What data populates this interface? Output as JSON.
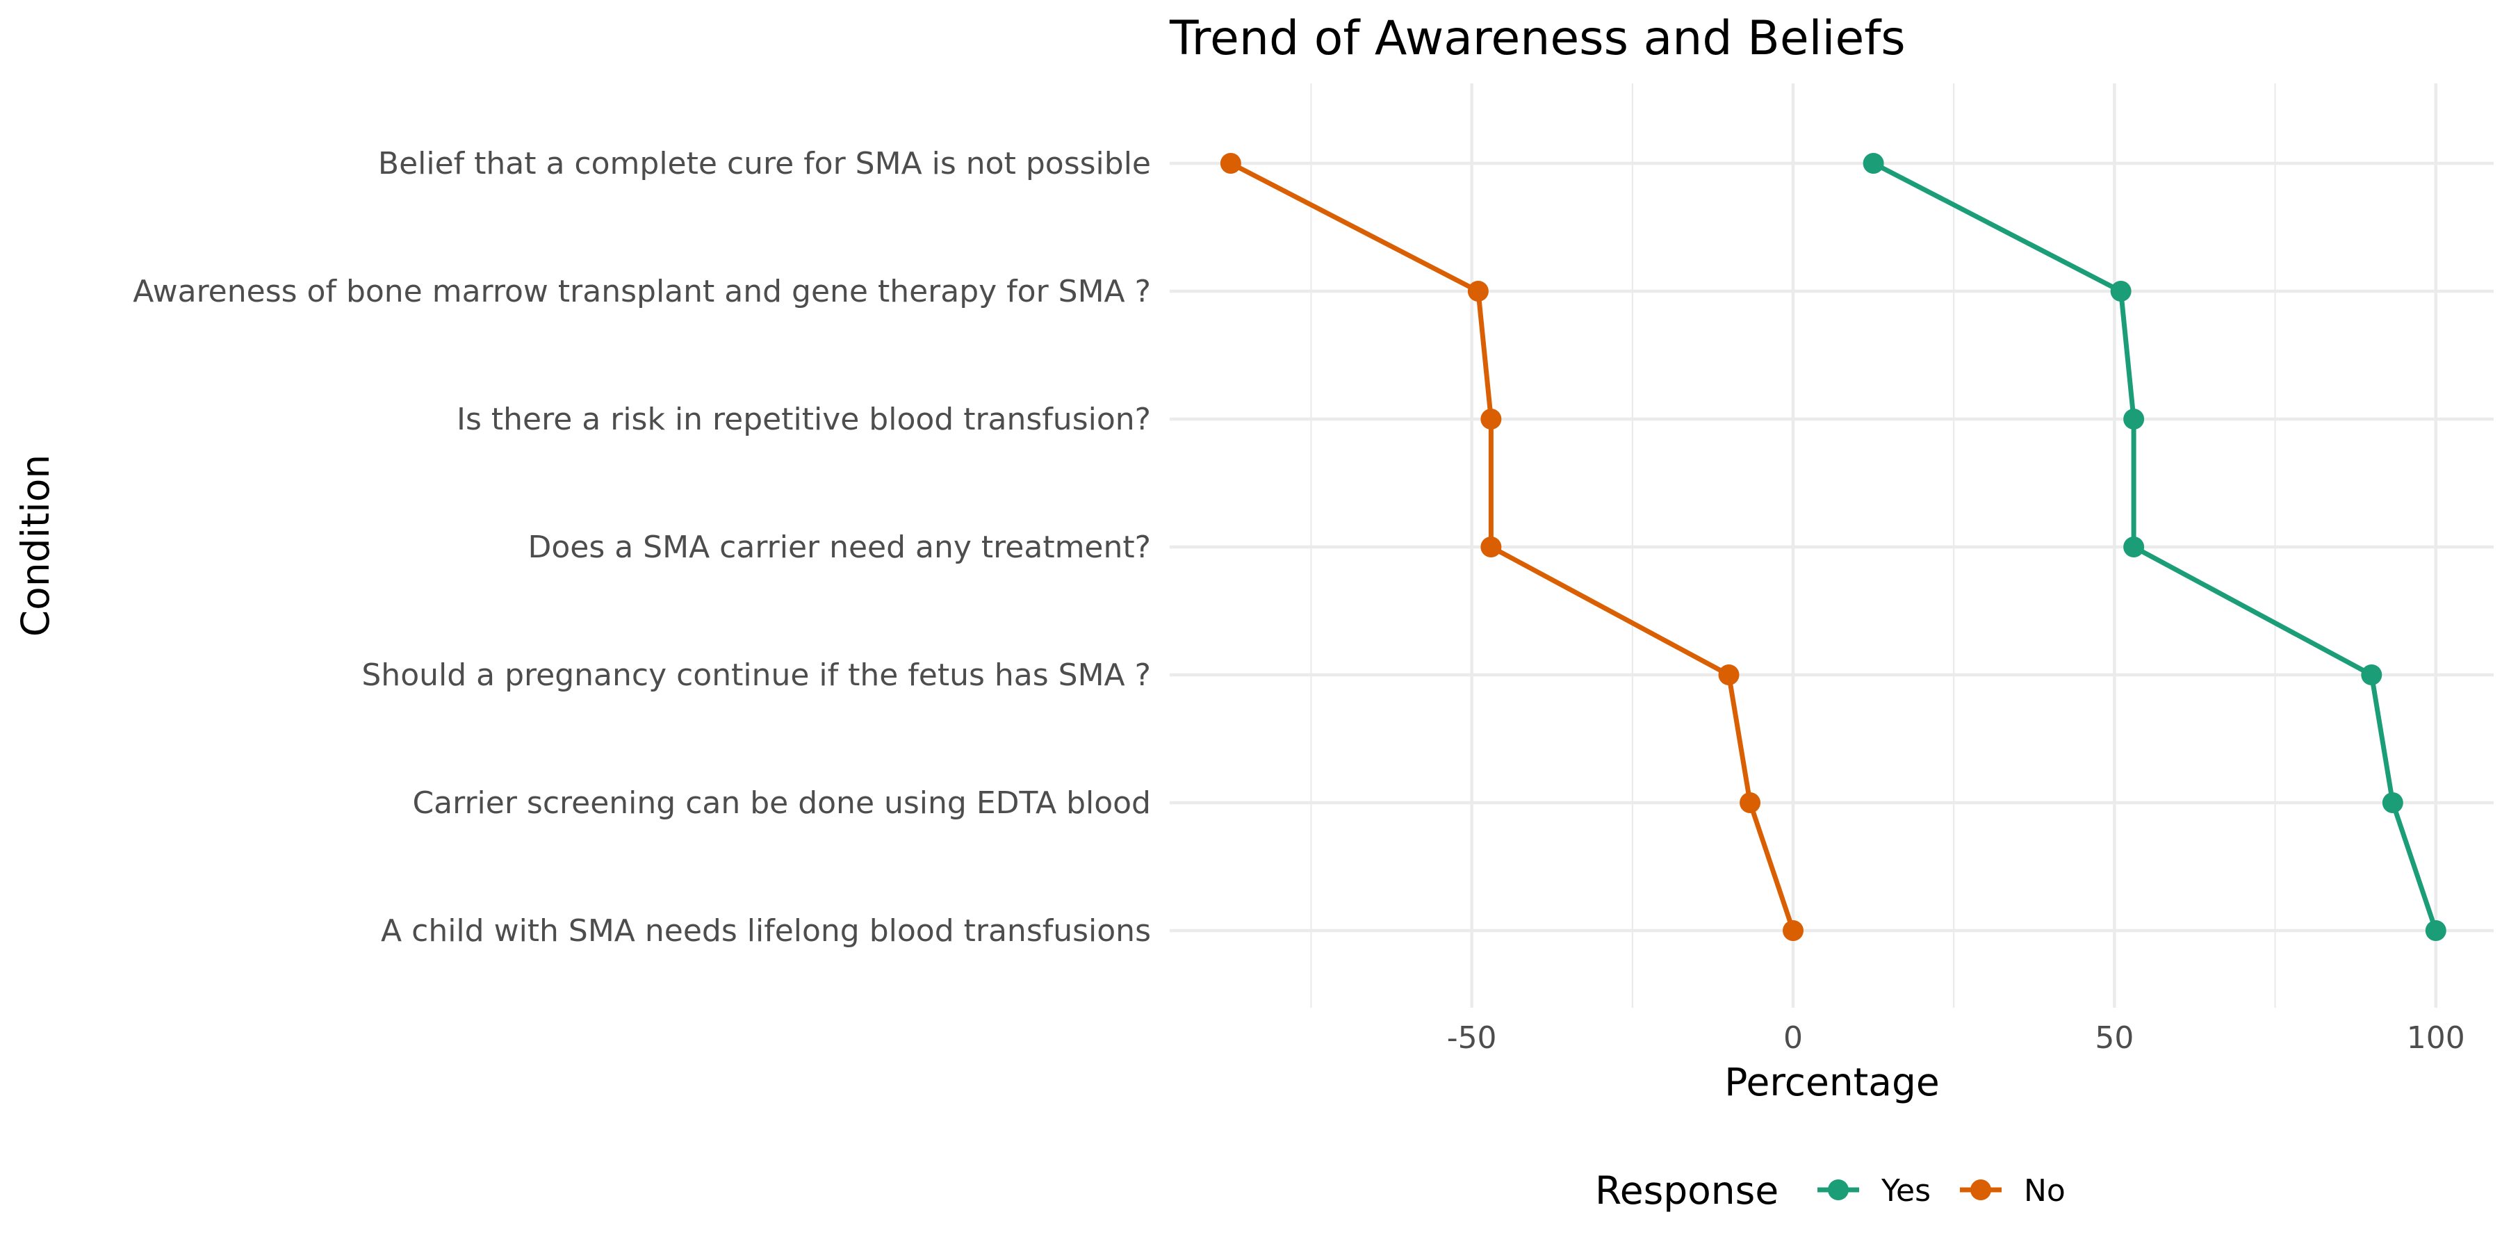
{
  "chart_data": {
    "type": "line",
    "title": "Trend of Awareness and Beliefs",
    "xlabel": "Percentage",
    "ylabel": "Condition",
    "xlim": [
      -97,
      109
    ],
    "x_ticks": [
      -50,
      0,
      50,
      100
    ],
    "x_tick_labels": [
      "-50",
      "0",
      "50",
      "100"
    ],
    "grid": true,
    "legend": {
      "title": "Response",
      "position": "bottom"
    },
    "categories": [
      "Belief that a complete cure for SMA  is not possible",
      "Awareness of bone marrow transplant and gene therapy for SMA ?",
      "Is there a risk in repetitive blood transfusion?",
      "Does a SMA carrier need any treatment?",
      "Should a pregnancy continue if the fetus has SMA ?",
      "Carrier screening can be done using EDTA blood",
      "A child with SMA  needs lifelong blood transfusions"
    ],
    "series": [
      {
        "name": "Yes",
        "color": "#1b9e77",
        "values": [
          12.5,
          51,
          53,
          53,
          90,
          93.3,
          100
        ]
      },
      {
        "name": "No",
        "color": "#d95f02",
        "values": [
          -87.5,
          -49,
          -47,
          -47,
          -10,
          -6.7,
          0
        ]
      }
    ]
  }
}
